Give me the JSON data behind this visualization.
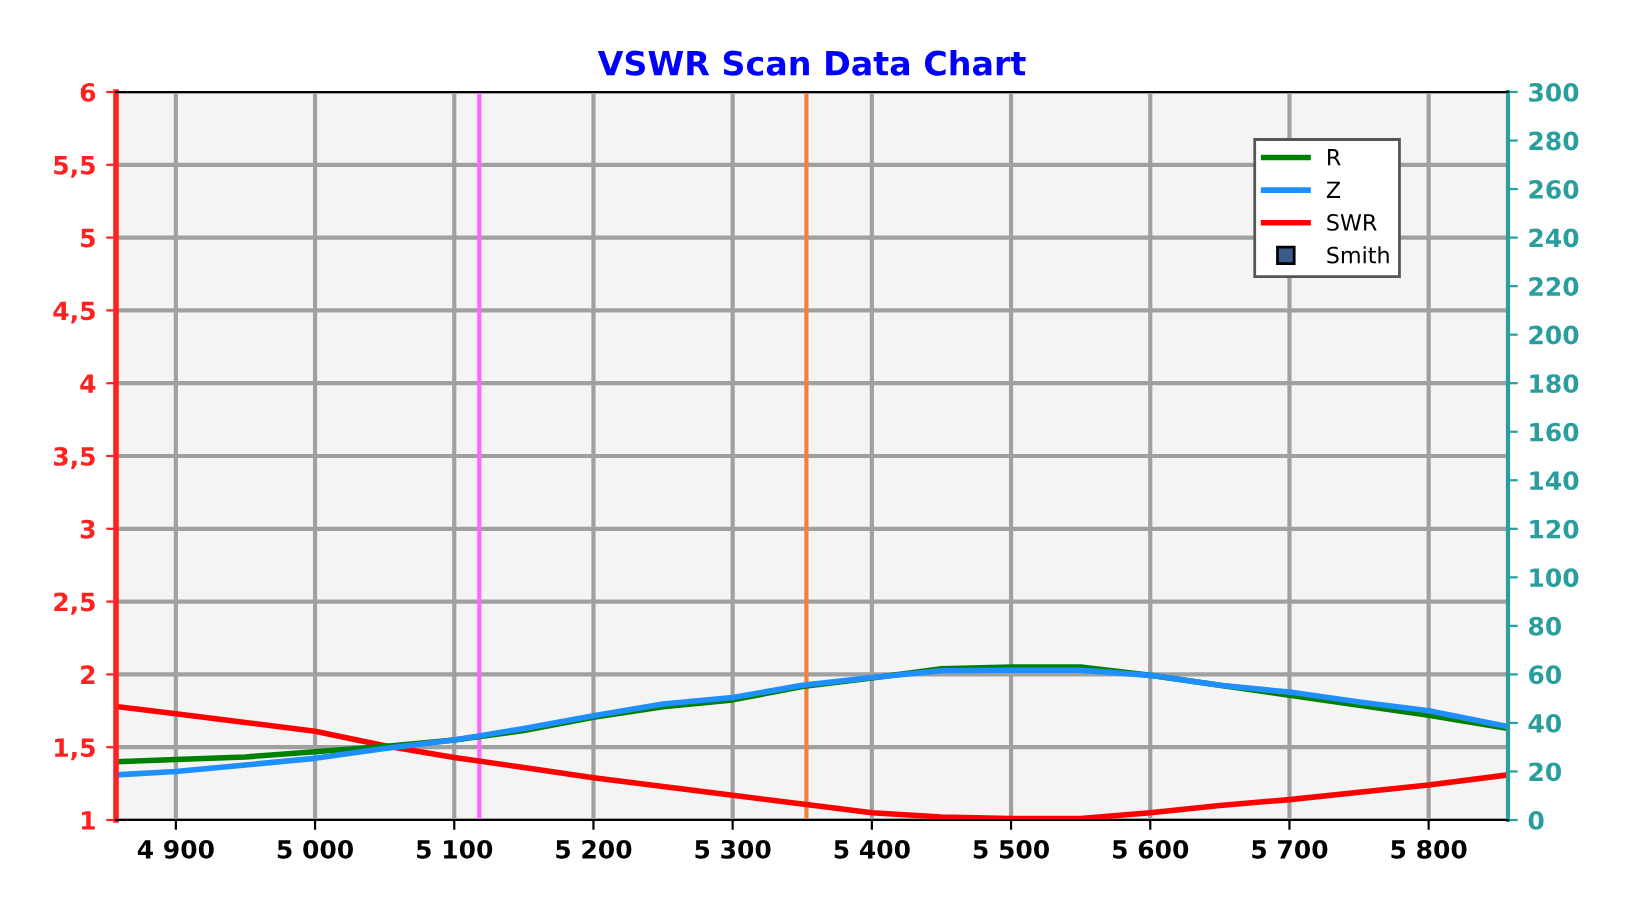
{
  "chart_data": {
    "type": "line",
    "title": "VSWR Scan Data Chart",
    "x": [
      4857,
      4900,
      4950,
      5000,
      5050,
      5100,
      5150,
      5200,
      5250,
      5300,
      5350,
      5400,
      5450,
      5500,
      5550,
      5600,
      5650,
      5700,
      5750,
      5800,
      5857
    ],
    "series": [
      {
        "name": "R",
        "color": "#008000",
        "axis": "y2",
        "values": [
          24,
          24.9,
          26,
          28.1,
          30.3,
          33,
          36.9,
          42.3,
          46.7,
          49.5,
          55,
          58.5,
          62.3,
          63,
          63,
          59.6,
          55.5,
          51.4,
          47.3,
          43.2,
          37.7
        ]
      },
      {
        "name": "Z",
        "color": "#1e8fff",
        "axis": "y2",
        "values": [
          18.6,
          20,
          22.7,
          25.4,
          29.5,
          33,
          37.7,
          43,
          47.8,
          50.5,
          55.5,
          58.7,
          61.5,
          61.7,
          61.7,
          59.6,
          55.5,
          52.7,
          48.6,
          45,
          38.5
        ]
      },
      {
        "name": "SWR",
        "color": "#ff0000",
        "values": [
          1.78,
          1.73,
          1.67,
          1.61,
          1.51,
          1.43,
          1.36,
          1.29,
          1.23,
          1.17,
          1.11,
          1.05,
          1.02,
          1.01,
          1.01,
          1.05,
          1.1,
          1.14,
          1.19,
          1.24,
          1.31
        ]
      },
      {
        "name": "Smith",
        "type": "scatter",
        "marker": "square",
        "color": "#3a5a8c",
        "values": [
          null,
          null,
          null,
          null,
          null,
          null,
          null,
          null,
          null,
          null,
          null,
          null,
          null,
          null,
          null,
          null,
          null,
          null,
          null,
          null,
          null
        ]
      }
    ],
    "xlim": [
      4857,
      5857
    ],
    "xticks": [
      {
        "value": 4900,
        "label": "4 900"
      },
      {
        "value": 5000,
        "label": "5 000"
      },
      {
        "value": 5100,
        "label": "5 100"
      },
      {
        "value": 5200,
        "label": "5 200"
      },
      {
        "value": 5300,
        "label": "5 300"
      },
      {
        "value": 5400,
        "label": "5 400"
      },
      {
        "value": 5500,
        "label": "5 500"
      },
      {
        "value": 5600,
        "label": "5 600"
      },
      {
        "value": 5700,
        "label": "5 700"
      },
      {
        "value": 5800,
        "label": "5 800"
      }
    ],
    "ylim": [
      1,
      6
    ],
    "yticks": [
      1,
      {
        "value": 1.5,
        "label": "1,5"
      },
      2,
      {
        "value": 2.5,
        "label": "2,5"
      },
      3,
      {
        "value": 3.5,
        "label": "3,5"
      },
      4,
      {
        "value": 4.5,
        "label": "4,5"
      },
      5,
      {
        "value": 5.5,
        "label": "5,5"
      },
      6
    ],
    "y2lim": [
      0,
      300
    ],
    "y2ticks": [
      0,
      20,
      40,
      60,
      80,
      100,
      120,
      140,
      160,
      180,
      200,
      220,
      240,
      260,
      280,
      300
    ],
    "ref_lines": [
      {
        "axis": "x",
        "value": 5118,
        "color": "#ff66ff"
      },
      {
        "axis": "x",
        "value": 5353,
        "color": "#f08040"
      }
    ],
    "grid": true,
    "legend": "top right",
    "line_style": "solid"
  }
}
